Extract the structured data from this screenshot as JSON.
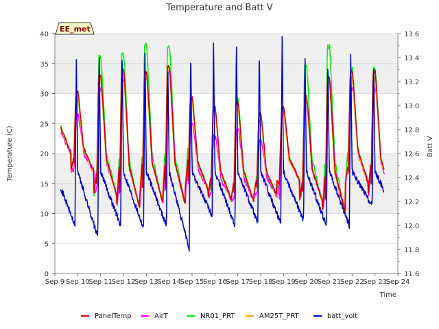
{
  "chart_data": {
    "type": "line",
    "title": "Temperature and Batt V",
    "xlabel": "Time",
    "ylabel": "Temperature (C)",
    "y2label": "Batt V",
    "badge": "EE_met",
    "x_ticks": [
      "Sep 9",
      "Sep 10",
      "Sep 11",
      "Sep 12",
      "Sep 13",
      "Sep 14",
      "Sep 15",
      "Sep 16",
      "Sep 17",
      "Sep 18",
      "Sep 19",
      "Sep 20",
      "Sep 21",
      "Sep 22",
      "Sep 23",
      "Sep 24"
    ],
    "xlim": [
      0,
      15
    ],
    "ylim": [
      0,
      40
    ],
    "y_ticks": [
      0,
      5,
      10,
      15,
      20,
      25,
      30,
      35,
      40
    ],
    "y2lim": [
      11.6,
      13.6
    ],
    "y2_ticks": [
      "11.6",
      "11.8",
      "12.0",
      "12.2",
      "12.4",
      "12.6",
      "12.8",
      "13.0",
      "13.2",
      "13.4",
      "13.6"
    ],
    "grid": true,
    "legend_position": "bottom",
    "daily_profiles": {
      "days": [
        0,
        1,
        2,
        3,
        4,
        5,
        6,
        7,
        8,
        9,
        10,
        11,
        12,
        13,
        14
      ],
      "PanelTemp_max": [
        35.0,
        30.5,
        33.5,
        34.5,
        34.0,
        35.0,
        29.5,
        28.0,
        29.0,
        27.0,
        28.0,
        30.0,
        33.0,
        34.0,
        0
      ],
      "PanelTemp_min": [
        20.0,
        17.0,
        13.0,
        11.0,
        12.0,
        11.5,
        14.0,
        12.5,
        12.0,
        13.0,
        15.5,
        12.0,
        10.0,
        15.0,
        13.0
      ],
      "AirT_max": [
        31.5,
        26.5,
        31.0,
        32.5,
        33.0,
        34.0,
        25.0,
        23.0,
        24.5,
        22.5,
        27.0,
        29.0,
        32.5,
        31.0,
        0
      ],
      "NR01_PRT_max": [
        35.0,
        29.0,
        36.5,
        37.0,
        38.5,
        38.5,
        29.5,
        27.5,
        29.5,
        25.5,
        27.5,
        35.0,
        38.5,
        34.5,
        0
      ],
      "AM25T_PRT_max": [
        34.0,
        30.0,
        33.0,
        34.0,
        34.0,
        34.5,
        29.0,
        27.5,
        28.5,
        26.5,
        27.0,
        29.5,
        32.5,
        33.0,
        0
      ],
      "batt_volt_max": [
        13.4,
        13.46,
        13.48,
        13.46,
        13.34,
        13.48,
        13.5,
        13.6,
        13.52,
        13.58,
        13.46,
        13.4,
        13.45,
        13.4,
        0
      ],
      "batt_volt_min": [
        12.0,
        11.9,
        12.0,
        11.98,
        12.0,
        11.8,
        12.08,
        12.0,
        12.02,
        12.02,
        12.04,
        12.0,
        12.0,
        12.16,
        12.1
      ]
    },
    "series": [
      {
        "name": "PanelTemp",
        "color": "#cc0000",
        "axis": "left"
      },
      {
        "name": "AirT",
        "color": "#ff00ff",
        "axis": "left"
      },
      {
        "name": "NR01_PRT",
        "color": "#00ee00",
        "axis": "left"
      },
      {
        "name": "AM25T_PRT",
        "color": "#ffa500",
        "axis": "left"
      },
      {
        "name": "batt_volt",
        "color": "#0000cc",
        "axis": "right"
      }
    ]
  }
}
